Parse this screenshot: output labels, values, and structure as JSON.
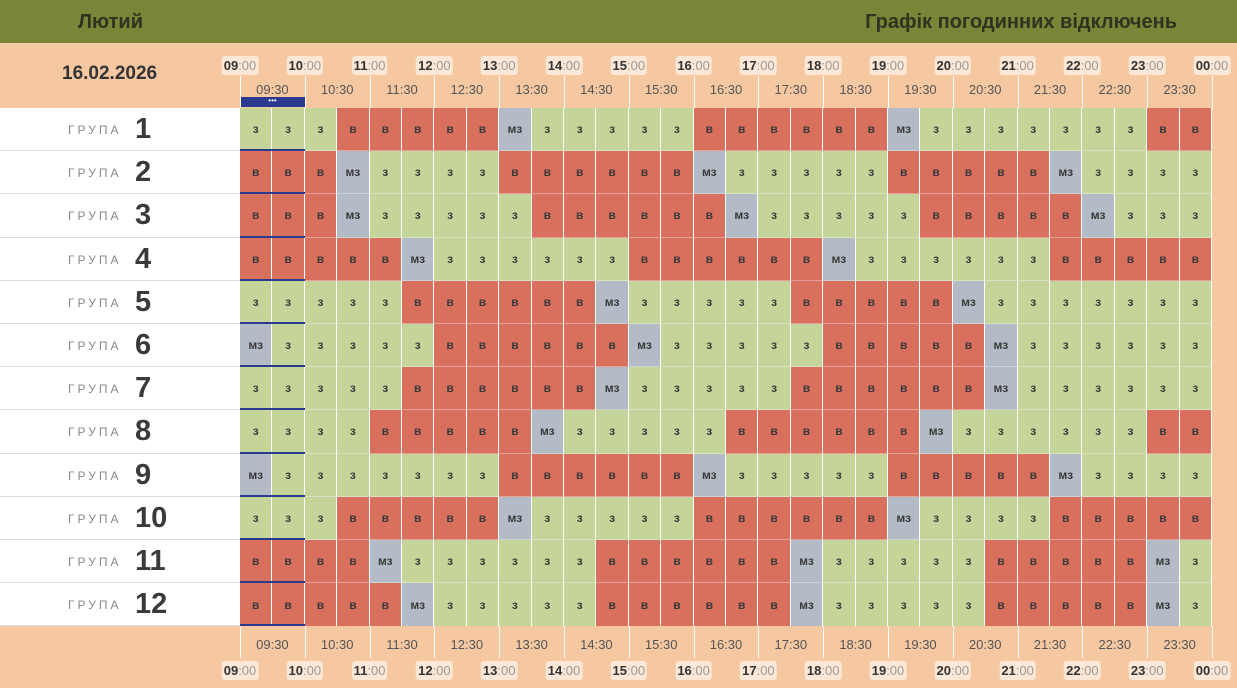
{
  "header": {
    "month": "Лютий",
    "title": "Графік погодинних відключень"
  },
  "date": "16.02.2026",
  "hours": [
    "09:00",
    "10:00",
    "11:00",
    "12:00",
    "13:00",
    "14:00",
    "15:00",
    "16:00",
    "17:00",
    "18:00",
    "19:00",
    "20:00",
    "21:00",
    "22:00",
    "23:00",
    "00:00"
  ],
  "half_hours": [
    "09:30",
    "10:30",
    "11:30",
    "12:30",
    "13:30",
    "14:30",
    "15:30",
    "16:30",
    "17:30",
    "18:30",
    "19:30",
    "20:30",
    "21:30",
    "22:30",
    "23:30"
  ],
  "colors": {
    "з": "#c5d59a",
    "в": "#d9705e",
    "мз": "#b3bcc6"
  },
  "groups": [
    {
      "label": "ГРУПА",
      "number": "1",
      "cells": [
        "з",
        "з",
        "з",
        "в",
        "в",
        "в",
        "в",
        "в",
        "мз",
        "з",
        "з",
        "з",
        "з",
        "з",
        "в",
        "в",
        "в",
        "в",
        "в",
        "в",
        "мз",
        "з",
        "з",
        "з",
        "з",
        "з",
        "з",
        "з",
        "в",
        "в"
      ]
    },
    {
      "label": "ГРУПА",
      "number": "2",
      "cells": [
        "в",
        "в",
        "в",
        "мз",
        "з",
        "з",
        "з",
        "з",
        "в",
        "в",
        "в",
        "в",
        "в",
        "в",
        "мз",
        "з",
        "з",
        "з",
        "з",
        "з",
        "в",
        "в",
        "в",
        "в",
        "в",
        "мз",
        "з",
        "з",
        "з",
        "з"
      ]
    },
    {
      "label": "ГРУПА",
      "number": "3",
      "cells": [
        "в",
        "в",
        "в",
        "мз",
        "з",
        "з",
        "з",
        "з",
        "з",
        "в",
        "в",
        "в",
        "в",
        "в",
        "в",
        "мз",
        "з",
        "з",
        "з",
        "з",
        "з",
        "в",
        "в",
        "в",
        "в",
        "в",
        "мз",
        "з",
        "з",
        "з"
      ]
    },
    {
      "label": "ГРУПА",
      "number": "4",
      "cells": [
        "в",
        "в",
        "в",
        "в",
        "в",
        "мз",
        "з",
        "з",
        "з",
        "з",
        "з",
        "з",
        "в",
        "в",
        "в",
        "в",
        "в",
        "в",
        "мз",
        "з",
        "з",
        "з",
        "з",
        "з",
        "з",
        "в",
        "в",
        "в",
        "в",
        "в"
      ]
    },
    {
      "label": "ГРУПА",
      "number": "5",
      "cells": [
        "з",
        "з",
        "з",
        "з",
        "з",
        "в",
        "в",
        "в",
        "в",
        "в",
        "в",
        "мз",
        "з",
        "з",
        "з",
        "з",
        "з",
        "в",
        "в",
        "в",
        "в",
        "в",
        "мз",
        "з",
        "з",
        "з",
        "з",
        "з",
        "з",
        "з"
      ]
    },
    {
      "label": "ГРУПА",
      "number": "6",
      "cells": [
        "мз",
        "з",
        "з",
        "з",
        "з",
        "з",
        "в",
        "в",
        "в",
        "в",
        "в",
        "в",
        "мз",
        "з",
        "з",
        "з",
        "з",
        "з",
        "в",
        "в",
        "в",
        "в",
        "в",
        "мз",
        "з",
        "з",
        "з",
        "з",
        "з",
        "з"
      ]
    },
    {
      "label": "ГРУПА",
      "number": "7",
      "cells": [
        "з",
        "з",
        "з",
        "з",
        "з",
        "в",
        "в",
        "в",
        "в",
        "в",
        "в",
        "мз",
        "з",
        "з",
        "з",
        "з",
        "з",
        "в",
        "в",
        "в",
        "в",
        "в",
        "в",
        "мз",
        "з",
        "з",
        "з",
        "з",
        "з",
        "з"
      ]
    },
    {
      "label": "ГРУПА",
      "number": "8",
      "cells": [
        "з",
        "з",
        "з",
        "з",
        "в",
        "в",
        "в",
        "в",
        "в",
        "мз",
        "з",
        "з",
        "з",
        "з",
        "з",
        "в",
        "в",
        "в",
        "в",
        "в",
        "в",
        "мз",
        "з",
        "з",
        "з",
        "з",
        "з",
        "з",
        "в",
        "в"
      ]
    },
    {
      "label": "ГРУПА",
      "number": "9",
      "cells": [
        "мз",
        "з",
        "з",
        "з",
        "з",
        "з",
        "з",
        "з",
        "в",
        "в",
        "в",
        "в",
        "в",
        "в",
        "мз",
        "з",
        "з",
        "з",
        "з",
        "з",
        "в",
        "в",
        "в",
        "в",
        "в",
        "мз",
        "з",
        "з",
        "з",
        "з"
      ]
    },
    {
      "label": "ГРУПА",
      "number": "10",
      "cells": [
        "з",
        "з",
        "з",
        "в",
        "в",
        "в",
        "в",
        "в",
        "мз",
        "з",
        "з",
        "з",
        "з",
        "з",
        "в",
        "в",
        "в",
        "в",
        "в",
        "в",
        "мз",
        "з",
        "з",
        "з",
        "з",
        "в",
        "в",
        "в",
        "в",
        "в"
      ]
    },
    {
      "label": "ГРУПА",
      "number": "11",
      "cells": [
        "в",
        "в",
        "в",
        "в",
        "мз",
        "з",
        "з",
        "з",
        "з",
        "з",
        "з",
        "в",
        "в",
        "в",
        "в",
        "в",
        "в",
        "мз",
        "з",
        "з",
        "з",
        "з",
        "з",
        "в",
        "в",
        "в",
        "в",
        "в",
        "мз",
        "з"
      ]
    },
    {
      "label": "ГРУПА",
      "number": "12",
      "cells": [
        "в",
        "в",
        "в",
        "в",
        "в",
        "мз",
        "з",
        "з",
        "з",
        "з",
        "з",
        "в",
        "в",
        "в",
        "в",
        "в",
        "в",
        "мз",
        "з",
        "з",
        "з",
        "з",
        "з",
        "в",
        "в",
        "в",
        "в",
        "в",
        "мз",
        "з"
      ]
    }
  ]
}
